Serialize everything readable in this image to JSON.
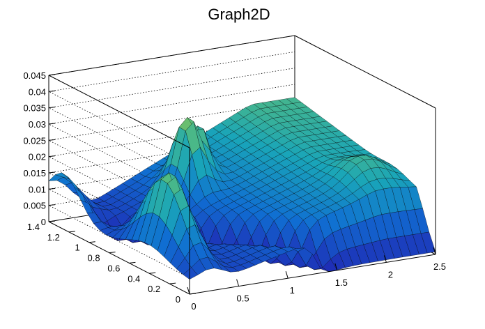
{
  "chart_data": {
    "type": "surface",
    "title": "Graph2D",
    "xlabel": "",
    "ylabel": "",
    "zlabel": "",
    "xlim": [
      0,
      2.5
    ],
    "ylim": [
      0,
      1.4
    ],
    "zlim": [
      0,
      0.045
    ],
    "x_ticks": [
      "0",
      "0.5",
      "1",
      "1.5",
      "2",
      "2.5"
    ],
    "y_ticks": [
      "0",
      "0.2",
      "0.4",
      "0.6",
      "0.8",
      "1",
      "1.2",
      "1.4"
    ],
    "z_ticks": [
      "0",
      "0.005",
      "0.01",
      "0.015",
      "0.02",
      "0.025",
      "0.03",
      "0.035",
      "0.04",
      "0.045"
    ],
    "grid": true,
    "legend": "none",
    "colormap": "parula",
    "colors": {
      "low": "#1f2bb5",
      "mid": "#22a7b0",
      "high": "#f8e02a",
      "grid": "#000000",
      "axis": "#000000"
    }
  }
}
